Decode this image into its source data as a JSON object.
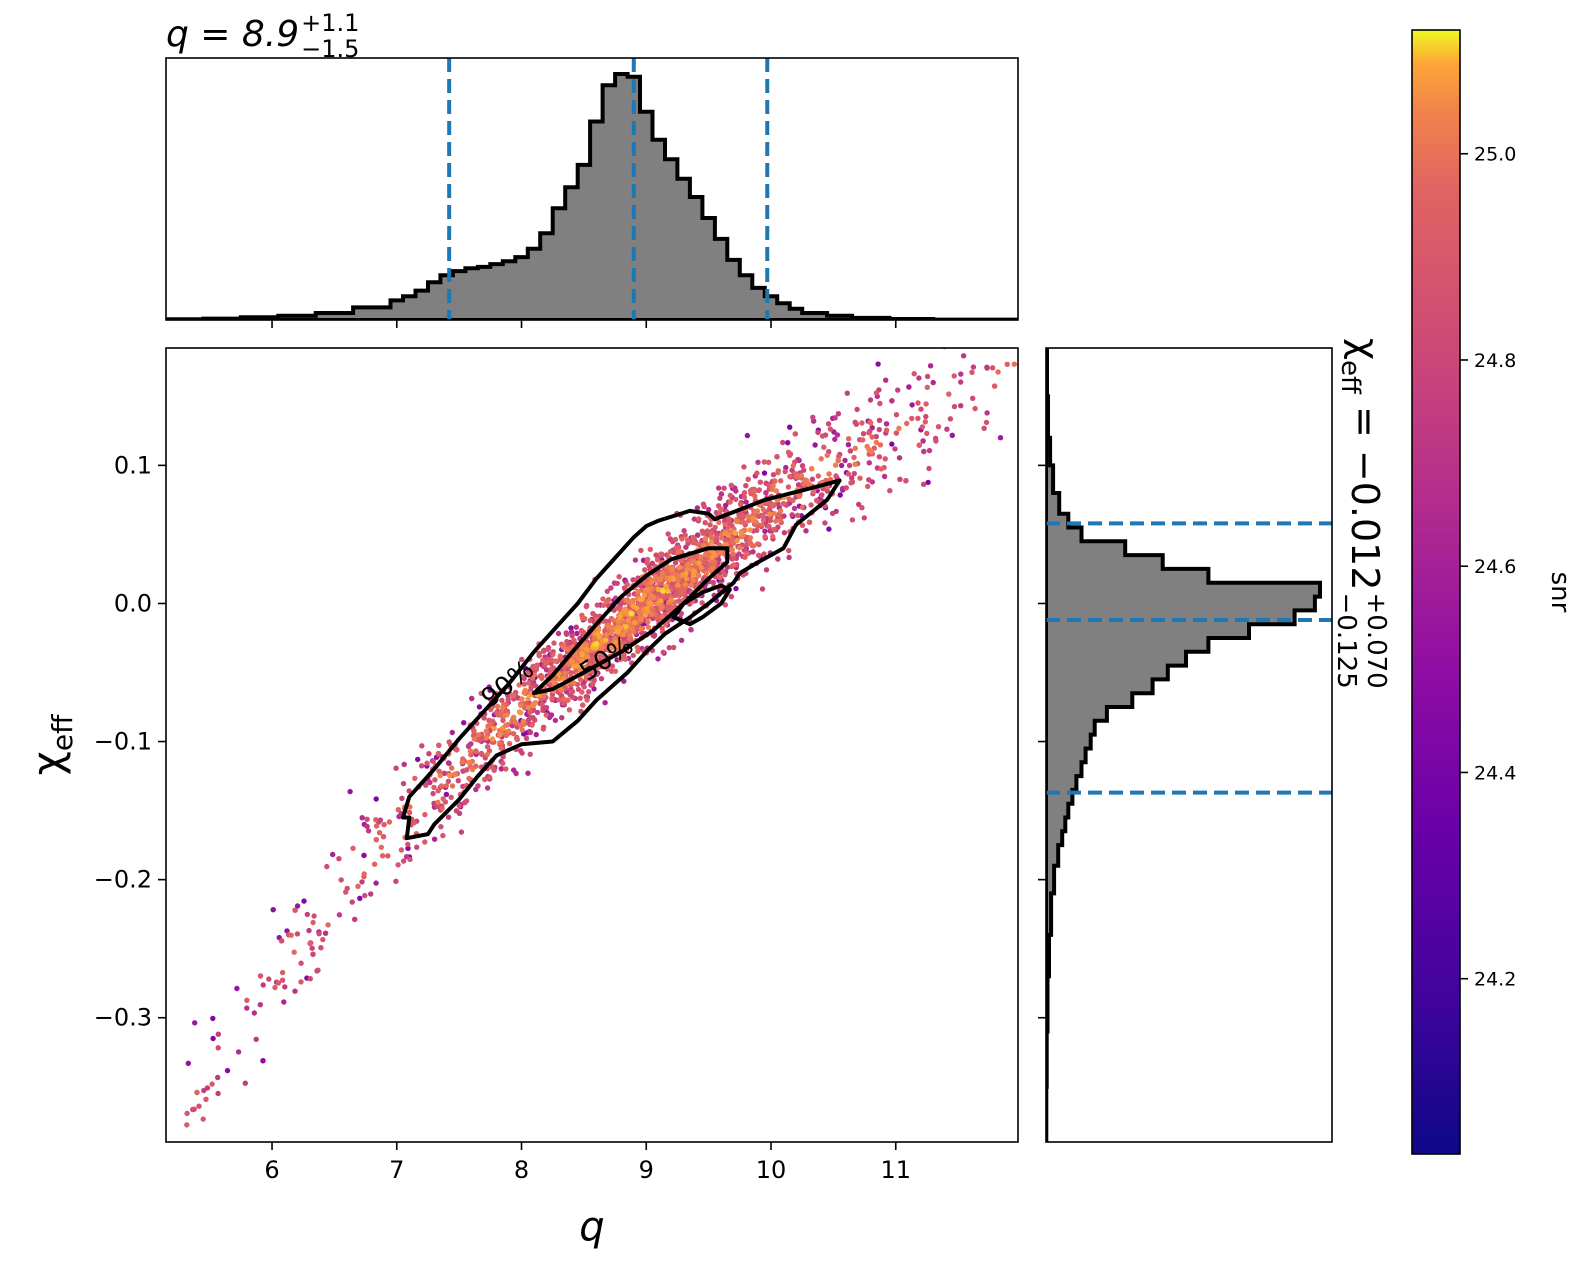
{
  "chart_data": [
    {
      "type": "scatter",
      "panel": "joint",
      "xlabel": "q",
      "ylabel_symbol": "χ",
      "ylabel_sub": "eff",
      "xlim": [
        5.15,
        11.98
      ],
      "ylim": [
        -0.39,
        0.185
      ],
      "xticks": [
        6,
        7,
        8,
        9,
        10,
        11
      ],
      "xtick_labels": [
        "6",
        "7",
        "8",
        "9",
        "10",
        "11"
      ],
      "yticks": [
        0.1,
        0.0,
        -0.1,
        -0.2,
        -0.3
      ],
      "ytick_labels": [
        "0.1",
        "0.0",
        "−0.1",
        "−0.2",
        "−0.3"
      ],
      "color_by": "snr",
      "points": {
        "trend": [
          [
            5.3,
            -0.37
          ],
          [
            6.0,
            -0.27
          ],
          [
            7.0,
            -0.16
          ],
          [
            8.0,
            -0.075
          ],
          [
            9.0,
            0.0
          ],
          [
            10.0,
            0.07
          ],
          [
            11.0,
            0.125
          ],
          [
            11.9,
            0.17
          ]
        ],
        "approx_count": 2600
      },
      "contours": [
        {
          "label": "90%",
          "path": [
            [
              7.05,
              -0.155
            ],
            [
              7.1,
              -0.14
            ],
            [
              7.3,
              -0.12
            ],
            [
              7.5,
              -0.098
            ],
            [
              7.7,
              -0.078
            ],
            [
              7.9,
              -0.058
            ],
            [
              8.1,
              -0.035
            ],
            [
              8.3,
              -0.015
            ],
            [
              8.45,
              0.0
            ],
            [
              8.6,
              0.018
            ],
            [
              8.75,
              0.033
            ],
            [
              8.9,
              0.048
            ],
            [
              9.0,
              0.056
            ],
            [
              9.1,
              0.06
            ],
            [
              9.35,
              0.067
            ],
            [
              9.5,
              0.065
            ],
            [
              9.55,
              0.061
            ],
            [
              9.95,
              0.075
            ],
            [
              10.3,
              0.083
            ],
            [
              10.55,
              0.089
            ],
            [
              10.45,
              0.075
            ],
            [
              10.2,
              0.057
            ],
            [
              10.1,
              0.04
            ],
            [
              9.9,
              0.03
            ],
            [
              9.75,
              0.022
            ],
            [
              9.7,
              0.015
            ],
            [
              9.5,
              0.0
            ],
            [
              9.35,
              -0.01
            ],
            [
              9.15,
              -0.022
            ],
            [
              9.0,
              -0.035
            ],
            [
              8.85,
              -0.05
            ],
            [
              8.6,
              -0.07
            ],
            [
              8.45,
              -0.085
            ],
            [
              8.25,
              -0.1
            ],
            [
              8.0,
              -0.102
            ],
            [
              7.8,
              -0.11
            ],
            [
              7.65,
              -0.125
            ],
            [
              7.5,
              -0.142
            ],
            [
              7.3,
              -0.16
            ],
            [
              7.25,
              -0.167
            ],
            [
              7.08,
              -0.17
            ],
            [
              7.1,
              -0.155
            ]
          ]
        },
        {
          "label": "50%",
          "path": [
            [
              8.1,
              -0.065
            ],
            [
              8.25,
              -0.052
            ],
            [
              8.4,
              -0.036
            ],
            [
              8.6,
              -0.015
            ],
            [
              8.8,
              0.005
            ],
            [
              9.0,
              0.02
            ],
            [
              9.2,
              0.032
            ],
            [
              9.5,
              0.04
            ],
            [
              9.65,
              0.04
            ],
            [
              9.65,
              0.03
            ],
            [
              9.5,
              0.018
            ],
            [
              9.3,
              0.0
            ],
            [
              9.05,
              -0.02
            ],
            [
              8.8,
              -0.035
            ],
            [
              8.5,
              -0.05
            ],
            [
              8.25,
              -0.062
            ],
            [
              8.1,
              -0.065
            ]
          ]
        },
        {
          "label": "",
          "path": [
            [
              9.35,
              -0.015
            ],
            [
              9.22,
              -0.01
            ],
            [
              9.3,
              0.0
            ],
            [
              9.45,
              0.008
            ],
            [
              9.6,
              0.013
            ],
            [
              9.67,
              0.01
            ],
            [
              9.6,
              0.0
            ],
            [
              9.45,
              -0.01
            ],
            [
              9.35,
              -0.015
            ]
          ]
        }
      ]
    },
    {
      "type": "histogram",
      "panel": "marginal-q",
      "title_lhs": "q = 8.9",
      "title_sup": "+1.1",
      "title_sub": "−1.5",
      "median": 8.9,
      "lower": 7.42,
      "upper": 9.97,
      "bin_edges": [
        5.15,
        5.45,
        5.75,
        6.05,
        6.35,
        6.65,
        6.95,
        7.05,
        7.15,
        7.25,
        7.35,
        7.45,
        7.55,
        7.65,
        7.75,
        7.85,
        7.95,
        8.05,
        8.15,
        8.25,
        8.35,
        8.45,
        8.55,
        8.65,
        8.75,
        8.85,
        8.95,
        9.05,
        9.15,
        9.25,
        9.35,
        9.45,
        9.55,
        9.65,
        9.75,
        9.85,
        9.95,
        10.05,
        10.15,
        10.25,
        10.45,
        10.65,
        10.95,
        11.3,
        11.98
      ],
      "counts": [
        0.5,
        1,
        2,
        3,
        5,
        9,
        14,
        17,
        21,
        27,
        32,
        35,
        37,
        38,
        40,
        42,
        45,
        51,
        62,
        80,
        95,
        111,
        142,
        168,
        176,
        174,
        149,
        129,
        115,
        101,
        88,
        73,
        58,
        43,
        32,
        23,
        17,
        12,
        8,
        5,
        3,
        1.5,
        0.7,
        0.3
      ]
    },
    {
      "type": "histogram",
      "panel": "marginal-chi_eff",
      "orientation": "horizontal",
      "label_symbol": "χ",
      "label_sub": "eff",
      "label_rhs": " = −0.012",
      "label_sup": "+0.070",
      "label_sub2": "−0.125",
      "median": -0.012,
      "lower": -0.137,
      "upper": 0.058,
      "bin_edges": [
        -0.39,
        -0.35,
        -0.31,
        -0.27,
        -0.24,
        -0.21,
        -0.19,
        -0.175,
        -0.165,
        -0.155,
        -0.145,
        -0.135,
        -0.125,
        -0.115,
        -0.105,
        -0.095,
        -0.085,
        -0.075,
        -0.065,
        -0.055,
        -0.045,
        -0.035,
        -0.025,
        -0.015,
        -0.005,
        0.005,
        0.015,
        0.025,
        0.035,
        0.045,
        0.055,
        0.065,
        0.08,
        0.1,
        0.12,
        0.15,
        0.185
      ],
      "counts": [
        0.3,
        0.7,
        1.5,
        3,
        5,
        8,
        12,
        16,
        19,
        22,
        26,
        30,
        35,
        39,
        44,
        48,
        60,
        85,
        105,
        120,
        138,
        160,
        200,
        245,
        265,
        270,
        160,
        115,
        78,
        35,
        22,
        13,
        7,
        4,
        2,
        1
      ]
    },
    {
      "type": "colorbar",
      "label": "snr",
      "range": [
        24.03,
        25.12
      ],
      "ticks": [
        24.2,
        24.4,
        24.6,
        24.8,
        25.0
      ],
      "tick_labels": [
        "24.2",
        "24.4",
        "24.6",
        "24.8",
        "25.0"
      ],
      "colormap": "plasma"
    }
  ],
  "colors": {
    "quantile_line": "#1f77b4",
    "hist_fill": "#808080",
    "hist_edge": "#000000",
    "contour": "#000000"
  }
}
